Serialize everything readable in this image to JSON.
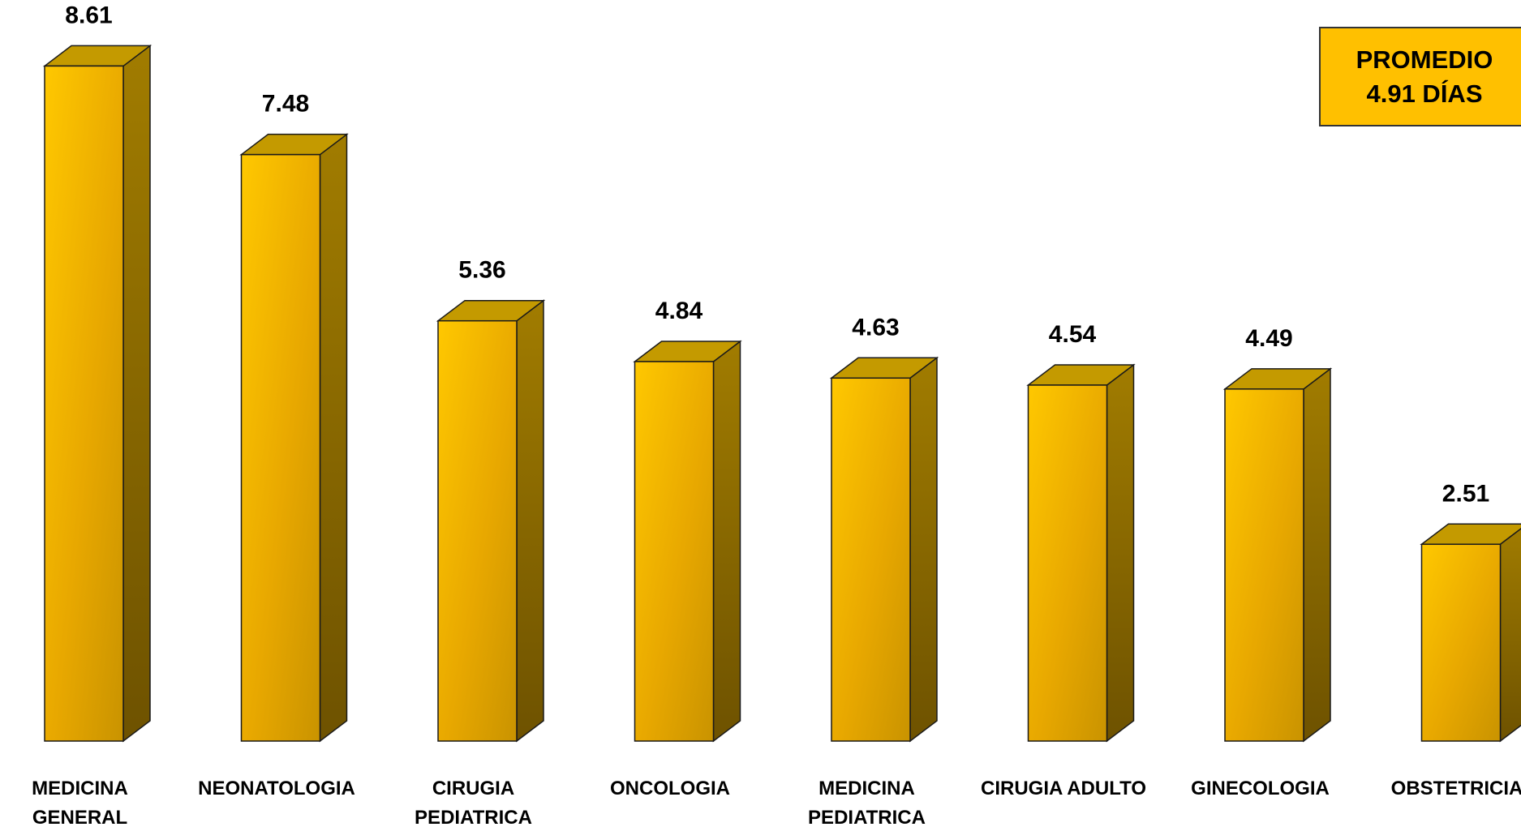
{
  "chart_data": {
    "type": "bar",
    "categories": [
      [
        "MEDICINA",
        "GENERAL"
      ],
      [
        "NEONATOLOGIA"
      ],
      [
        "CIRUGIA",
        "PEDIATRICA"
      ],
      [
        "ONCOLOGIA"
      ],
      [
        "MEDICINA",
        "PEDIATRICA"
      ],
      [
        "CIRUGIA ADULTO"
      ],
      [
        "GINECOLOGIA"
      ],
      [
        "OBSTETRICIA"
      ]
    ],
    "values": [
      8.61,
      7.48,
      5.36,
      4.84,
      4.63,
      4.54,
      4.49,
      2.51
    ],
    "value_labels": [
      "8.61",
      "7.48",
      "5.36",
      "4.84",
      "4.63",
      "4.54",
      "4.49",
      "2.51"
    ],
    "grid": false,
    "legend": "none",
    "bar_style": "3d",
    "colors": {
      "front": "#FFC000",
      "side": "#9A7400",
      "top": "#C49A00",
      "outline": "#1a1a1a"
    }
  },
  "average_box": {
    "line1": "PROMEDIO",
    "line2": "4.91 DÍAS",
    "color": "#FFC000"
  }
}
